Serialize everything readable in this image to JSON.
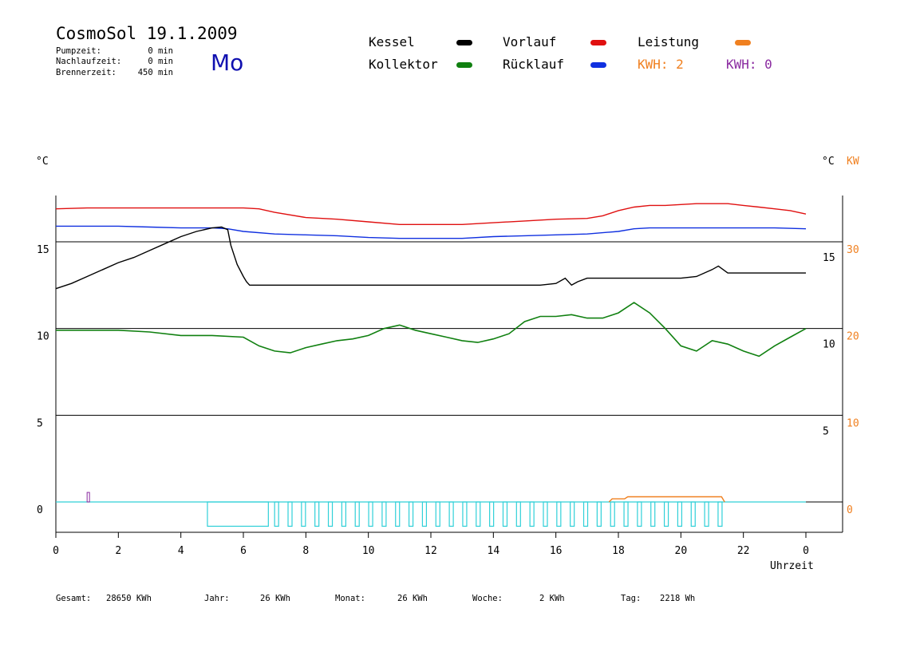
{
  "header": {
    "title": "CosmoSol 19.1.2009",
    "day": "Mo",
    "stats": [
      {
        "label": "Pumpzeit:",
        "value": "0 min"
      },
      {
        "label": "Nachlaufzeit:",
        "value": "0 min"
      },
      {
        "label": "Brennerzeit:",
        "value": "450 min"
      }
    ]
  },
  "legend": {
    "kessel": {
      "label": "Kessel",
      "color": "#000000"
    },
    "kollektor": {
      "label": "Kollektor",
      "color": "#108010"
    },
    "vorlauf": {
      "label": "Vorlauf",
      "color": "#e01010"
    },
    "ruecklauf": {
      "label": "Rücklauf",
      "color": "#1030e0"
    },
    "leistung": {
      "label": "Leistung",
      "color": "#f08020"
    },
    "kwh_orange": "KWH: 2",
    "kwh_purple": "KWH: 0"
  },
  "axes": {
    "left_unit": "°C",
    "right_unit_c": "°C",
    "right_unit_kw": "KW",
    "left_ticks": [
      "15",
      "10",
      "5",
      "0"
    ],
    "right_c_ticks": [
      "15",
      "10",
      "5"
    ],
    "right_kw_ticks": [
      "30",
      "20",
      "10",
      "0"
    ],
    "x_ticks": [
      "0",
      "2",
      "4",
      "6",
      "8",
      "10",
      "12",
      "14",
      "16",
      "18",
      "20",
      "22",
      "0"
    ],
    "xlabel": "Uhrzeit"
  },
  "footer": {
    "gesamt": {
      "label": "Gesamt:",
      "value": "28650 KWh"
    },
    "jahr": {
      "label": "Jahr:",
      "value": "26 KWh"
    },
    "monat": {
      "label": "Monat:",
      "value": "26 KWh"
    },
    "woche": {
      "label": "Woche:",
      "value": "2 KWh"
    },
    "tag": {
      "label": "Tag:",
      "value": "2218 Wh"
    }
  },
  "chart_data": {
    "type": "line",
    "xlim": [
      0,
      24
    ],
    "ylim": [
      -1.4,
      17.7
    ],
    "y2lim_kw": [
      -2.8,
      35.4
    ],
    "grid": "horizontal lines at 0, 5, 10, 15",
    "series": [
      {
        "name": "Vorlauf",
        "color": "#e01010",
        "x": [
          0,
          1,
          2,
          3,
          4,
          5,
          6,
          6.5,
          7,
          8,
          9,
          10,
          11,
          12,
          13,
          14,
          15,
          16,
          17,
          17.5,
          18,
          18.5,
          19,
          19.5,
          20,
          20.5,
          21,
          21.5,
          22,
          22.5,
          23,
          23.5,
          24
        ],
        "y": [
          16.9,
          16.95,
          16.95,
          16.95,
          16.95,
          16.95,
          16.95,
          16.9,
          16.7,
          16.4,
          16.3,
          16.15,
          16,
          16,
          16,
          16.1,
          16.2,
          16.3,
          16.35,
          16.5,
          16.8,
          17.0,
          17.1,
          17.1,
          17.15,
          17.2,
          17.2,
          17.2,
          17.1,
          17.0,
          16.9,
          16.8,
          16.6
        ]
      },
      {
        "name": "Rücklauf",
        "color": "#1030e0",
        "x": [
          0,
          1,
          2,
          3,
          4,
          5,
          5.5,
          6,
          7,
          8,
          9,
          10,
          11,
          12,
          13,
          14,
          15,
          16,
          17,
          18,
          18.5,
          19,
          20,
          21,
          22,
          23,
          24
        ],
        "y": [
          15.9,
          15.9,
          15.9,
          15.85,
          15.8,
          15.8,
          15.75,
          15.6,
          15.45,
          15.4,
          15.35,
          15.25,
          15.2,
          15.2,
          15.2,
          15.3,
          15.35,
          15.4,
          15.45,
          15.6,
          15.75,
          15.8,
          15.8,
          15.8,
          15.8,
          15.8,
          15.75
        ]
      },
      {
        "name": "Kessel",
        "color": "#000000",
        "x": [
          0,
          0.5,
          1,
          1.5,
          2,
          2.5,
          3,
          3.5,
          4,
          4.5,
          5,
          5.3,
          5.5,
          5.6,
          5.8,
          6.0,
          6.1,
          6.2,
          7,
          8,
          9,
          10,
          11,
          12,
          13,
          14,
          15,
          15.5,
          16,
          16.3,
          16.5,
          16.7,
          17,
          18,
          19,
          20,
          20.5,
          21,
          21.2,
          21.5,
          22,
          23,
          24
        ],
        "y": [
          12.3,
          12.6,
          13,
          13.4,
          13.8,
          14.1,
          14.5,
          14.9,
          15.3,
          15.6,
          15.8,
          15.85,
          15.7,
          14.8,
          13.7,
          13.0,
          12.7,
          12.5,
          12.5,
          12.5,
          12.5,
          12.5,
          12.5,
          12.5,
          12.5,
          12.5,
          12.5,
          12.5,
          12.6,
          12.9,
          12.5,
          12.7,
          12.9,
          12.9,
          12.9,
          12.9,
          13.0,
          13.4,
          13.6,
          13.2,
          13.2,
          13.2,
          13.2
        ]
      },
      {
        "name": "Kollektor",
        "color": "#108010",
        "x": [
          0,
          1,
          2,
          3,
          4,
          5,
          6,
          6.5,
          7,
          7.5,
          8,
          8.5,
          9,
          9.5,
          10,
          10.5,
          11,
          11.5,
          12,
          12.5,
          13,
          13.5,
          14,
          14.5,
          15,
          15.5,
          16,
          16.5,
          17,
          17.5,
          18,
          18.5,
          19,
          19.5,
          20,
          20.5,
          21,
          21.5,
          22,
          22.5,
          23,
          23.5,
          24
        ],
        "y": [
          9.9,
          9.9,
          9.9,
          9.8,
          9.6,
          9.6,
          9.5,
          9.0,
          8.7,
          8.6,
          8.9,
          9.1,
          9.3,
          9.4,
          9.6,
          10.0,
          10.2,
          9.9,
          9.7,
          9.5,
          9.3,
          9.2,
          9.4,
          9.7,
          10.4,
          10.7,
          10.7,
          10.8,
          10.6,
          10.6,
          10.9,
          11.5,
          10.9,
          10.0,
          9.0,
          8.7,
          9.3,
          9.1,
          8.7,
          8.4,
          9.0,
          9.5,
          10.0
        ]
      },
      {
        "name": "Leistung",
        "color": "#f08020",
        "x": [
          17.7,
          17.8,
          18.2,
          18.3,
          21.3,
          21.4
        ],
        "y": [
          0,
          0.18,
          0.18,
          0.3,
          0.3,
          0
        ]
      }
    ]
  }
}
